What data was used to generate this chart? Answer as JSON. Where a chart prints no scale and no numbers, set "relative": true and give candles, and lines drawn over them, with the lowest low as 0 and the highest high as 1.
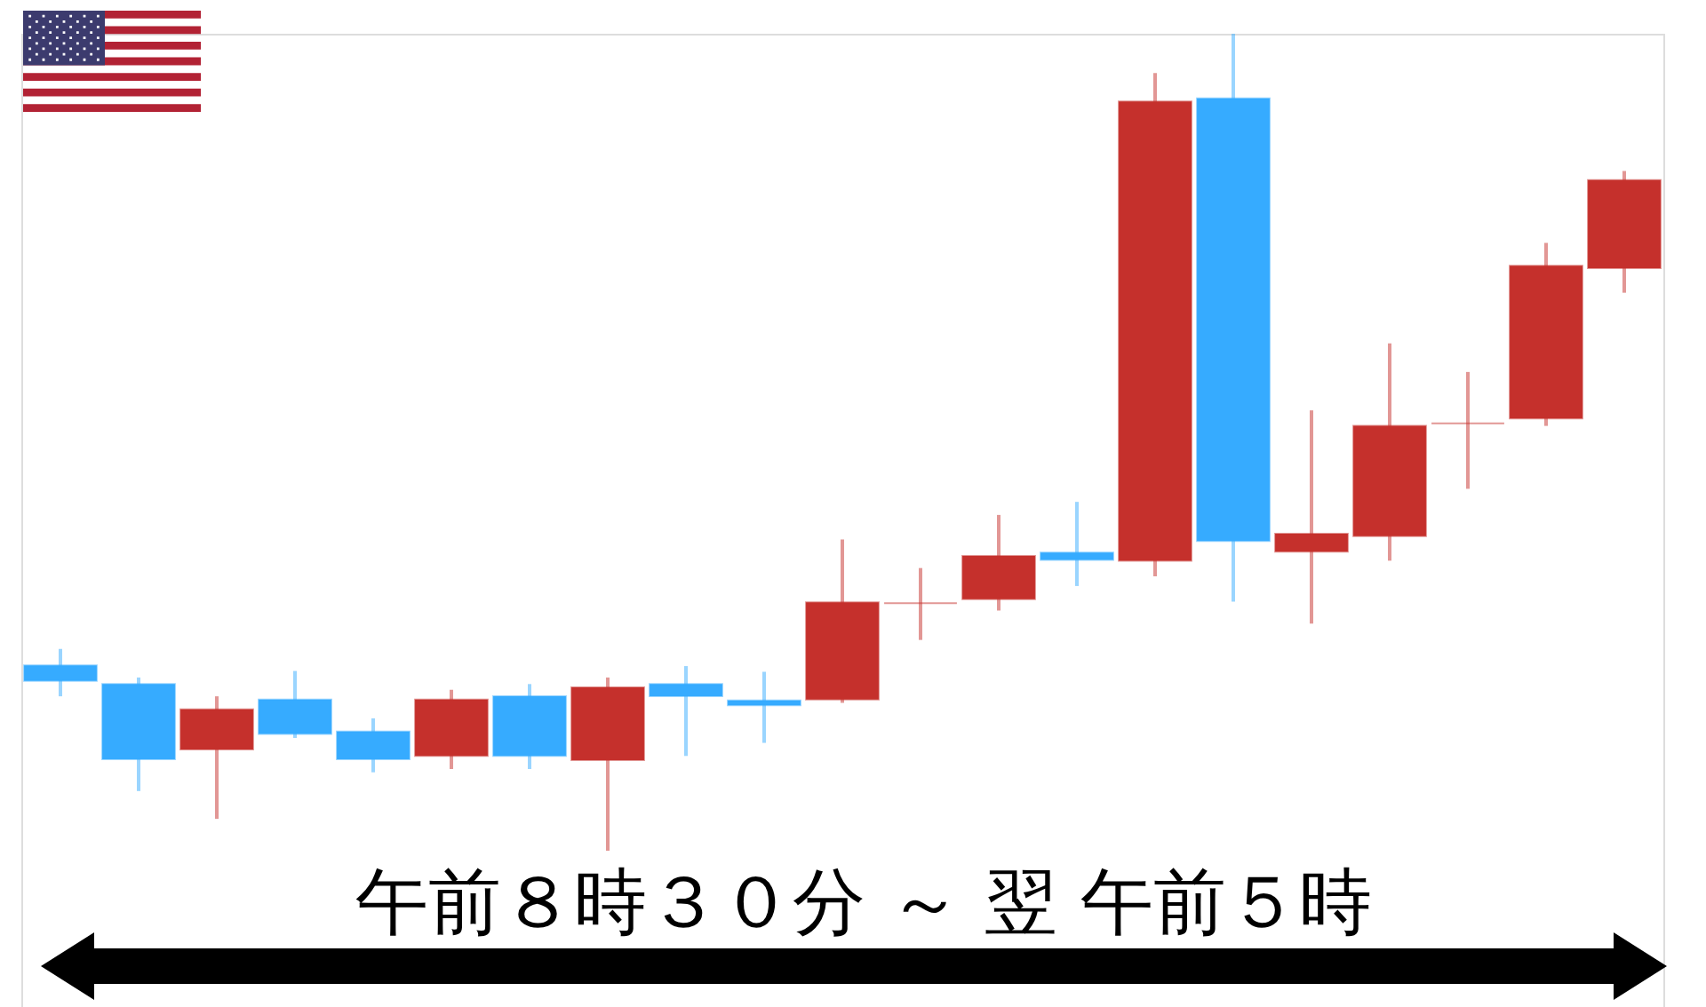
{
  "chart_data": {
    "type": "candlestick",
    "relative": true,
    "categories": [
      null,
      null,
      null,
      null,
      null,
      null,
      null,
      null,
      null,
      null,
      null,
      null,
      null,
      null,
      null,
      null,
      null,
      null,
      null,
      null,
      null
    ],
    "ohlc": [
      [
        0.227,
        0.247,
        0.189,
        0.208
      ],
      [
        0.204,
        0.212,
        0.073,
        0.112
      ],
      [
        0.124,
        0.189,
        0.039,
        0.173
      ],
      [
        0.185,
        0.22,
        0.138,
        0.143
      ],
      [
        0.146,
        0.162,
        0.096,
        0.112
      ],
      [
        0.116,
        0.197,
        0.1,
        0.185
      ],
      [
        0.189,
        0.204,
        0.1,
        0.116
      ],
      [
        0.111,
        0.212,
        0.0,
        0.2
      ],
      [
        0.204,
        0.226,
        0.116,
        0.189
      ],
      [
        0.184,
        0.219,
        0.132,
        0.178
      ],
      [
        0.185,
        0.381,
        0.181,
        0.304
      ],
      [
        0.303,
        0.346,
        0.258,
        0.303
      ],
      [
        0.308,
        0.411,
        0.294,
        0.361
      ],
      [
        0.365,
        0.427,
        0.324,
        0.356
      ],
      [
        0.355,
        0.952,
        0.336,
        0.917
      ],
      [
        0.921,
        1.0,
        0.305,
        0.379
      ],
      [
        0.366,
        0.539,
        0.278,
        0.388
      ],
      [
        0.385,
        0.621,
        0.355,
        0.52
      ],
      [
        0.523,
        0.586,
        0.443,
        0.523
      ],
      [
        0.529,
        0.744,
        0.52,
        0.716
      ],
      [
        0.713,
        0.832,
        0.683,
        0.821
      ]
    ],
    "colors": [
      "#36abff",
      "#36abff",
      "#c5302c",
      "#36abff",
      "#36abff",
      "#c5302c",
      "#36abff",
      "#c5302c",
      "#36abff",
      "#36abff",
      "#c5302c",
      "#c5302c",
      "#c5302c",
      "#36abff",
      "#c5302c",
      "#36abff",
      "#c5302c",
      "#c5302c",
      "#c5302c",
      "#c5302c",
      "#c5302c"
    ],
    "xlabel": "午前８時３０分 ～ 翌 午前５時"
  }
}
